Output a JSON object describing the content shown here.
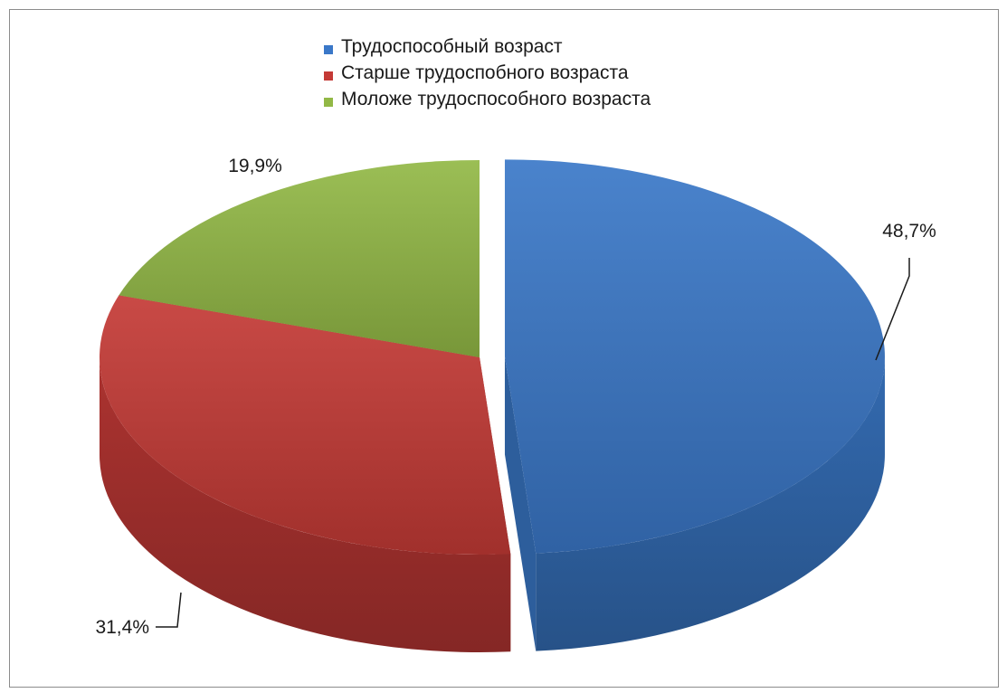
{
  "chart_data": {
    "type": "pie",
    "style": "3d-exploded",
    "slices": [
      {
        "label": "Трудоспособный возраст",
        "value": 48.7,
        "value_label": "48,7%",
        "color": "#3a78c8"
      },
      {
        "label": "Старше трудоспобного возраста",
        "value": 31.4,
        "value_label": "31,4%",
        "color": "#c43a36"
      },
      {
        "label": "Моложе трудоспособного возраста",
        "value": 19.9,
        "value_label": "19,9%",
        "color": "#92b846"
      }
    ],
    "legend_position": "top"
  }
}
